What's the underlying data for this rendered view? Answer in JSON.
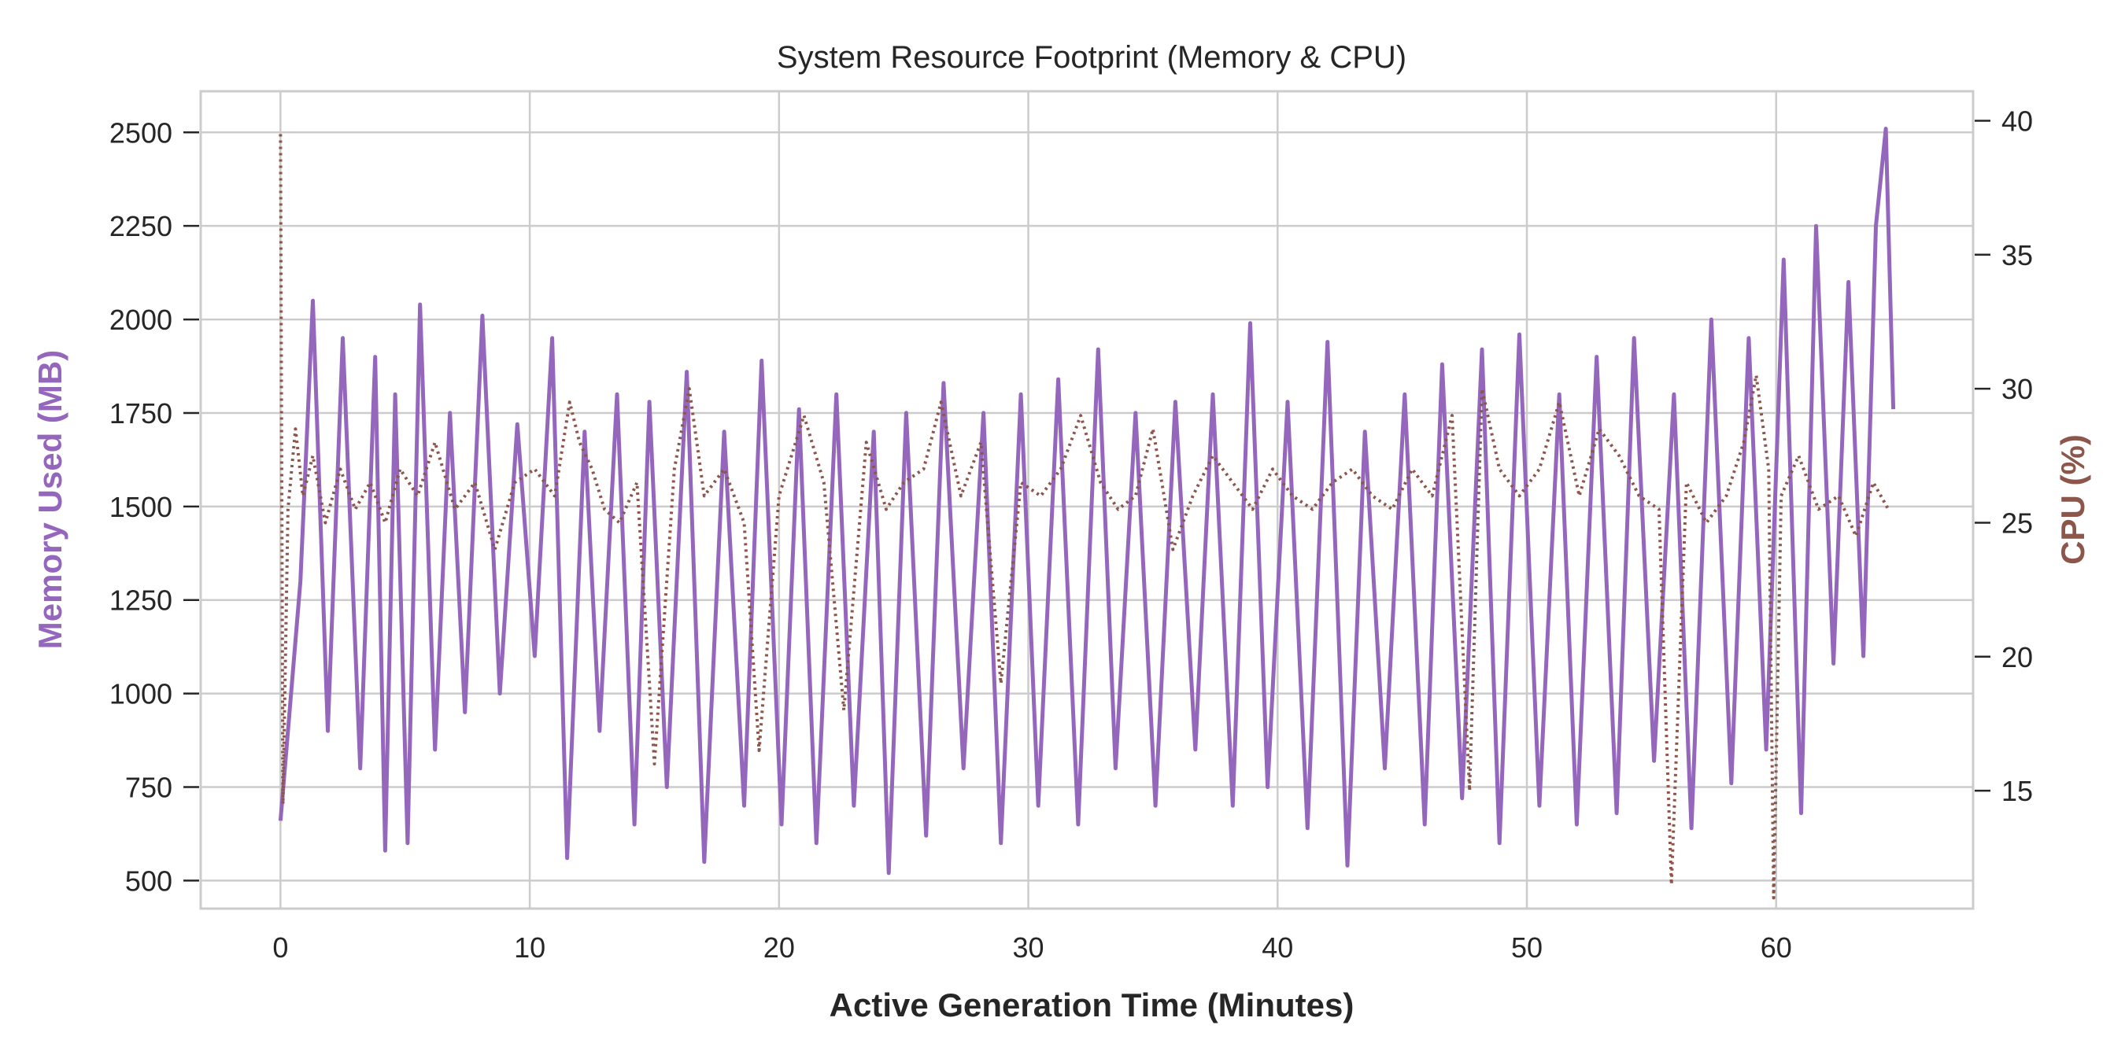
{
  "chart_data": {
    "type": "line",
    "title": "System Resource Footprint (Memory & CPU)",
    "xlabel": "Active Generation Time (Minutes)",
    "ylabel_left": "Memory Used (MB)",
    "ylabel_right": "CPU (%)",
    "xlim": [
      -3.2,
      67.9
    ],
    "ylim_left": [
      425,
      2610
    ],
    "ylim_right": [
      10.6,
      41.1
    ],
    "x_ticks": [
      "0",
      "10",
      "20",
      "30",
      "40",
      "50",
      "60"
    ],
    "y_left_ticks": [
      "500",
      "750",
      "1000",
      "1250",
      "1500",
      "1750",
      "2000",
      "2250",
      "2500"
    ],
    "y_right_ticks": [
      "15",
      "20",
      "25",
      "30",
      "35",
      "40"
    ],
    "grid": true,
    "legend": "none",
    "colors": {
      "memory": "#9467bd",
      "cpu": "#8c564b",
      "grid": "#cccccc",
      "frame": "#cccccc"
    },
    "series": [
      {
        "axis": "left",
        "style": "solid",
        "color": "#9467bd",
        "x": [
          0,
          0.8,
          1.3,
          1.9,
          2.5,
          3.2,
          3.8,
          4.2,
          4.6,
          5.1,
          5.6,
          6.2,
          6.8,
          7.4,
          8.1,
          8.8,
          9.5,
          10.2,
          10.9,
          11.5,
          12.2,
          12.8,
          13.5,
          14.2,
          14.8,
          15.5,
          16.3,
          17.0,
          17.8,
          18.6,
          19.3,
          20.1,
          20.8,
          21.5,
          22.3,
          23.0,
          23.8,
          24.4,
          25.1,
          25.9,
          26.6,
          27.4,
          28.2,
          28.9,
          29.7,
          30.4,
          31.2,
          32.0,
          32.8,
          33.5,
          34.3,
          35.1,
          35.9,
          36.7,
          37.4,
          38.2,
          38.9,
          39.6,
          40.4,
          41.2,
          42.0,
          42.8,
          43.5,
          44.3,
          45.1,
          45.9,
          46.6,
          47.4,
          48.2,
          48.9,
          49.7,
          50.5,
          51.3,
          52.0,
          52.8,
          53.6,
          54.3,
          55.1,
          55.9,
          56.6,
          57.4,
          58.2,
          58.9,
          59.6,
          60.3,
          61.0,
          61.6,
          62.3,
          62.9,
          63.5,
          64.0,
          64.4,
          64.7
        ],
        "y": [
          660,
          1300,
          2050,
          900,
          1950,
          800,
          1900,
          580,
          1800,
          600,
          2040,
          850,
          1750,
          950,
          2010,
          1000,
          1720,
          1100,
          1950,
          560,
          1700,
          900,
          1800,
          650,
          1780,
          750,
          1860,
          550,
          1700,
          700,
          1890,
          650,
          1760,
          600,
          1800,
          700,
          1700,
          520,
          1750,
          620,
          1830,
          800,
          1750,
          600,
          1800,
          700,
          1840,
          650,
          1920,
          800,
          1750,
          700,
          1780,
          850,
          1800,
          700,
          1990,
          750,
          1780,
          640,
          1940,
          540,
          1700,
          800,
          1800,
          650,
          1880,
          720,
          1920,
          600,
          1960,
          700,
          1800,
          650,
          1900,
          680,
          1950,
          820,
          1800,
          640,
          2000,
          760,
          1950,
          850,
          2160,
          680,
          2250,
          1080,
          2100,
          1100,
          2250,
          2510,
          1760
        ]
      },
      {
        "axis": "right",
        "style": "dotted",
        "color": "#8c564b",
        "x": [
          0,
          0.1,
          0.3,
          0.6,
          0.9,
          1.3,
          1.8,
          2.4,
          3.0,
          3.6,
          4.2,
          4.8,
          5.5,
          6.2,
          7.0,
          7.8,
          8.6,
          9.4,
          10.2,
          11.0,
          11.6,
          12.0,
          12.5,
          13.0,
          13.6,
          14.3,
          15.0,
          15.8,
          16.4,
          17.0,
          17.8,
          18.6,
          19.2,
          20.0,
          21.0,
          21.8,
          22.6,
          23.5,
          24.3,
          25.0,
          25.8,
          26.5,
          27.3,
          28.1,
          28.9,
          29.7,
          30.5,
          31.3,
          32.1,
          32.9,
          33.6,
          34.3,
          35.0,
          35.8,
          36.6,
          37.4,
          38.2,
          39.0,
          39.8,
          40.6,
          41.4,
          42.2,
          43.0,
          43.8,
          44.6,
          45.4,
          46.2,
          47.0,
          47.7,
          48.2,
          48.9,
          49.7,
          50.5,
          51.3,
          52.1,
          52.9,
          53.7,
          54.5,
          55.3,
          55.8,
          56.4,
          57.2,
          58.0,
          58.7,
          59.2,
          59.7,
          59.9,
          60.2,
          60.9,
          61.7,
          62.5,
          63.2,
          63.9,
          64.5
        ],
        "y": [
          39.5,
          14.5,
          25.5,
          28.5,
          26,
          27.5,
          25,
          27,
          25.5,
          26.5,
          25,
          27,
          26,
          28,
          25.5,
          26.5,
          24,
          26.5,
          27,
          26,
          29.5,
          28,
          27,
          25.5,
          25,
          26.5,
          16,
          27,
          30,
          26,
          27,
          25,
          16.5,
          26,
          29,
          26.5,
          18,
          28,
          25.5,
          26.5,
          27,
          29.5,
          26,
          28,
          19,
          26.5,
          26,
          27,
          29,
          26.5,
          25.5,
          26,
          28.5,
          24,
          26,
          27.5,
          26.5,
          25.5,
          27,
          26,
          25.5,
          26.5,
          27,
          26,
          25.5,
          27,
          26,
          29,
          15,
          30,
          27,
          26,
          27,
          29.5,
          26,
          28.5,
          27.5,
          26,
          25.5,
          11.5,
          26.5,
          25,
          26,
          28,
          30.5,
          27,
          11,
          26,
          27.5,
          25.5,
          26,
          24.5,
          26.5,
          25.5
        ]
      }
    ]
  }
}
